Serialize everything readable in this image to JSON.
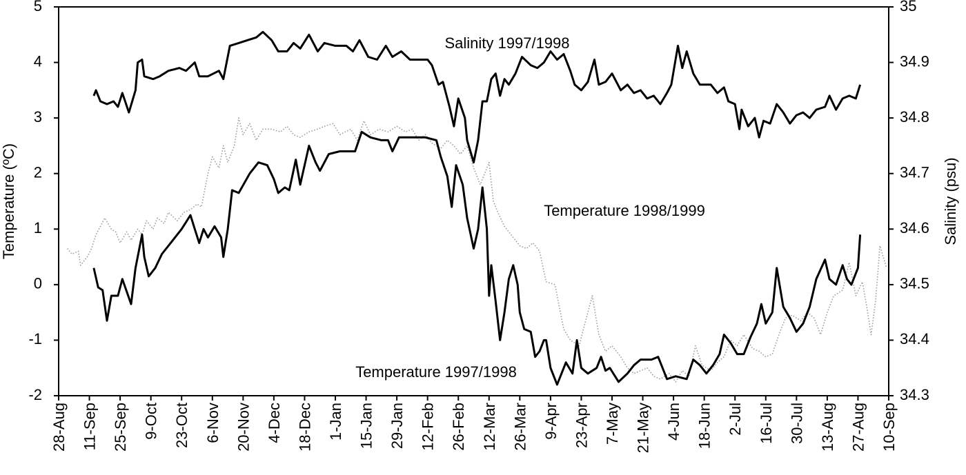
{
  "chart_data": {
    "type": "line",
    "ylabel": "Temperature (ºC)",
    "y2label": "Salinity (psu)",
    "xlim": [
      0,
      378
    ],
    "xticks": [
      {
        "value": 0,
        "label": "28-Aug"
      },
      {
        "value": 14,
        "label": "11-Sep"
      },
      {
        "value": 28,
        "label": "25-Sep"
      },
      {
        "value": 42,
        "label": "9-Oct"
      },
      {
        "value": 56,
        "label": "23-Oct"
      },
      {
        "value": 70,
        "label": "6-Nov"
      },
      {
        "value": 84,
        "label": "20-Nov"
      },
      {
        "value": 98,
        "label": "4-Dec"
      },
      {
        "value": 112,
        "label": "18-Dec"
      },
      {
        "value": 126,
        "label": "1-Jan"
      },
      {
        "value": 140,
        "label": "15-Jan"
      },
      {
        "value": 154,
        "label": "29-Jan"
      },
      {
        "value": 168,
        "label": "12-Feb"
      },
      {
        "value": 182,
        "label": "26-Feb"
      },
      {
        "value": 196,
        "label": "12-Mar"
      },
      {
        "value": 210,
        "label": "26-Mar"
      },
      {
        "value": 224,
        "label": "9-Apr"
      },
      {
        "value": 238,
        "label": "23-Apr"
      },
      {
        "value": 252,
        "label": "7-May"
      },
      {
        "value": 266,
        "label": "21-May"
      },
      {
        "value": 280,
        "label": "4-Jun"
      },
      {
        "value": 294,
        "label": "18-Jun"
      },
      {
        "value": 308,
        "label": "2-Jul"
      },
      {
        "value": 322,
        "label": "16-Jul"
      },
      {
        "value": 336,
        "label": "30-Jul"
      },
      {
        "value": 350,
        "label": "13-Aug"
      },
      {
        "value": 364,
        "label": "27-Aug"
      },
      {
        "value": 378,
        "label": "10-Sep"
      }
    ],
    "ylim": [
      -2,
      5
    ],
    "yticks": [
      -2,
      -1,
      0,
      1,
      2,
      3,
      4,
      5
    ],
    "y2lim": [
      34.3,
      35
    ],
    "y2ticks": [
      34.3,
      34.4,
      34.5,
      34.6,
      34.7,
      34.8,
      34.9,
      35
    ],
    "grid": false,
    "series": [
      {
        "name": "Temperature 1998/1999",
        "color": "#999999",
        "style": "dotted",
        "x": [
          4,
          6,
          9,
          10,
          13,
          15,
          17,
          19,
          21,
          24,
          26,
          28,
          31,
          33,
          36,
          38,
          40,
          43,
          45,
          48,
          50,
          54,
          57,
          60,
          63,
          65,
          68,
          70,
          73,
          75,
          77,
          80,
          82,
          84,
          87,
          90,
          93,
          97,
          101,
          104,
          107,
          110,
          114,
          118,
          121,
          125,
          128,
          133,
          136,
          139,
          142,
          146,
          150,
          154,
          158,
          161,
          164,
          167,
          170,
          174,
          177,
          180,
          183,
          186,
          189,
          192,
          196,
          198,
          200,
          203,
          207,
          210,
          213,
          216,
          219,
          222,
          226,
          228,
          230,
          233,
          237,
          240,
          243,
          246,
          249,
          252,
          256,
          259,
          262,
          265,
          268,
          271,
          274,
          278,
          281,
          284,
          287,
          290,
          293,
          297,
          300,
          303,
          306,
          309,
          312,
          316,
          319,
          322,
          325,
          328,
          331,
          334,
          338,
          341,
          344,
          347,
          350,
          353,
          357,
          360,
          363,
          366,
          368,
          370,
          372,
          374,
          377
        ],
        "values": [
          0.65,
          0.55,
          0.6,
          0.35,
          0.5,
          0.65,
          0.9,
          1.05,
          1.2,
          1.0,
          0.95,
          0.75,
          0.95,
          0.8,
          1.0,
          0.9,
          1.15,
          1.0,
          1.2,
          1.1,
          1.3,
          1.15,
          1.3,
          1.35,
          1.45,
          1.4,
          2.0,
          2.3,
          2.1,
          2.5,
          2.2,
          2.5,
          3.0,
          2.7,
          2.9,
          2.6,
          2.8,
          2.8,
          2.75,
          2.85,
          2.7,
          2.65,
          2.75,
          2.8,
          2.85,
          2.9,
          2.7,
          2.8,
          2.6,
          2.95,
          2.7,
          2.8,
          2.75,
          2.85,
          2.75,
          2.8,
          2.6,
          2.7,
          2.55,
          2.45,
          2.6,
          2.5,
          2.35,
          2.5,
          2.1,
          1.8,
          2.2,
          1.5,
          1.3,
          1.05,
          0.85,
          0.7,
          0.65,
          0.75,
          0.6,
          0.05,
          0.0,
          -0.4,
          -0.8,
          -1.0,
          -1.1,
          -0.65,
          -0.2,
          -0.9,
          -1.2,
          -1.1,
          -1.3,
          -1.5,
          -1.6,
          -1.55,
          -1.5,
          -1.65,
          -1.7,
          -1.6,
          -1.75,
          -1.55,
          -1.65,
          -1.1,
          -1.45,
          -1.55,
          -1.4,
          -1.3,
          -1.0,
          -1.1,
          -0.9,
          -1.15,
          -1.2,
          -1.3,
          -1.25,
          -0.9,
          -0.6,
          -0.55,
          -0.65,
          -0.5,
          -0.6,
          -0.9,
          -0.5,
          -0.2,
          -0.1,
          0.4,
          -0.2,
          0.05,
          -0.4,
          -0.9,
          -0.3,
          0.7,
          0.3
        ]
      },
      {
        "name": "Temperature 1997/1998",
        "color": "#000000",
        "style": "solid",
        "x": [
          16,
          18,
          20,
          22,
          24,
          27,
          29,
          33,
          35,
          38,
          39,
          41,
          44,
          47,
          52,
          56,
          60,
          62,
          64,
          66,
          68,
          71,
          74,
          75,
          77,
          79,
          82,
          87,
          91,
          95,
          98,
          100,
          103,
          105,
          108,
          110,
          114,
          117,
          119,
          123,
          128,
          133,
          135,
          138,
          142,
          147,
          150,
          152,
          155,
          161,
          167,
          172,
          174,
          177,
          179,
          181,
          184,
          186,
          189,
          191,
          193,
          195,
          196,
          197,
          199,
          201,
          203,
          205,
          207,
          209,
          210,
          212,
          215,
          217,
          219,
          221,
          222,
          224,
          227,
          229,
          231,
          234,
          236,
          238,
          241,
          245,
          247,
          249,
          251,
          255,
          259,
          262,
          265,
          270,
          273,
          277,
          281,
          286,
          289,
          292,
          295,
          298,
          301,
          303,
          306,
          309,
          312,
          315,
          318,
          320,
          322,
          325,
          327,
          330,
          333,
          336,
          339,
          342,
          345,
          349,
          351,
          354,
          357,
          359,
          361,
          364,
          365
        ],
        "values": [
          0.3,
          -0.05,
          -0.1,
          -0.65,
          -0.2,
          -0.2,
          0.1,
          -0.35,
          0.3,
          0.9,
          0.5,
          0.15,
          0.3,
          0.55,
          0.8,
          1.0,
          1.25,
          1.0,
          0.75,
          1.0,
          0.85,
          1.05,
          0.85,
          0.5,
          1.0,
          1.7,
          1.65,
          2.0,
          2.2,
          2.15,
          1.9,
          1.65,
          1.75,
          1.7,
          2.25,
          1.8,
          2.5,
          2.2,
          2.05,
          2.35,
          2.4,
          2.4,
          2.4,
          2.75,
          2.65,
          2.6,
          2.6,
          2.4,
          2.65,
          2.65,
          2.65,
          2.6,
          2.3,
          1.95,
          1.4,
          2.15,
          1.8,
          1.2,
          0.65,
          1.0,
          1.75,
          1.0,
          -0.2,
          0.35,
          -0.3,
          -1.0,
          -0.5,
          0.1,
          0.35,
          0.0,
          -0.5,
          -0.8,
          -0.85,
          -1.3,
          -1.2,
          -1.0,
          -1.0,
          -1.5,
          -1.8,
          -1.6,
          -1.4,
          -1.6,
          -1.0,
          -1.5,
          -1.6,
          -1.5,
          -1.3,
          -1.55,
          -1.5,
          -1.75,
          -1.6,
          -1.45,
          -1.35,
          -1.35,
          -1.3,
          -1.7,
          -1.65,
          -1.7,
          -1.35,
          -1.45,
          -1.6,
          -1.45,
          -1.25,
          -0.9,
          -1.05,
          -1.25,
          -1.25,
          -0.95,
          -0.7,
          -0.35,
          -0.7,
          -0.5,
          0.3,
          -0.4,
          -0.6,
          -0.85,
          -0.7,
          -0.4,
          0.1,
          0.45,
          0.1,
          0.0,
          0.35,
          0.1,
          0.0,
          0.3,
          0.9
        ]
      },
      {
        "name": "Salinity 1997/1998",
        "color": "#000000",
        "style": "solid",
        "axis": "y2",
        "x": [
          16,
          17,
          19,
          22,
          25,
          27,
          29,
          32,
          35,
          36,
          38,
          39,
          43,
          46,
          50,
          55,
          58,
          62,
          64,
          68,
          73,
          75,
          78,
          82,
          86,
          90,
          93,
          97,
          100,
          104,
          107,
          110,
          114,
          118,
          121,
          126,
          131,
          134,
          137,
          141,
          145,
          149,
          152,
          156,
          160,
          164,
          168,
          170,
          173,
          175,
          178,
          180,
          182,
          185,
          186,
          189,
          191,
          193,
          195,
          197,
          199,
          201,
          203,
          205,
          208,
          211,
          215,
          218,
          221,
          224,
          227,
          230,
          233,
          235,
          238,
          241,
          244,
          246,
          249,
          252,
          256,
          259,
          262,
          265,
          268,
          271,
          274,
          277,
          279,
          282,
          284,
          286,
          289,
          292,
          297,
          300,
          303,
          305,
          308,
          310,
          311,
          314,
          317,
          319,
          321,
          324,
          327,
          330,
          333,
          336,
          339,
          342,
          345,
          349,
          351,
          354,
          357,
          360,
          363,
          365
        ],
        "values": [
          34.84,
          34.85,
          34.83,
          34.825,
          34.83,
          34.82,
          34.845,
          34.81,
          34.85,
          34.9,
          34.905,
          34.875,
          34.87,
          34.875,
          34.885,
          34.89,
          34.885,
          34.9,
          34.875,
          34.875,
          34.885,
          34.87,
          34.93,
          34.935,
          34.94,
          34.945,
          34.955,
          34.94,
          34.92,
          34.92,
          34.935,
          34.925,
          34.95,
          34.92,
          34.935,
          34.93,
          34.93,
          34.92,
          34.94,
          34.91,
          34.905,
          34.93,
          34.91,
          34.92,
          34.905,
          34.905,
          34.905,
          34.895,
          34.86,
          34.865,
          34.82,
          34.785,
          34.835,
          34.8,
          34.76,
          34.72,
          34.76,
          34.83,
          34.83,
          34.87,
          34.88,
          34.84,
          34.87,
          34.86,
          34.88,
          34.91,
          34.895,
          34.89,
          34.9,
          34.92,
          34.905,
          34.915,
          34.885,
          34.86,
          34.85,
          34.865,
          34.905,
          34.86,
          34.865,
          34.88,
          34.85,
          34.86,
          34.845,
          34.85,
          34.835,
          34.84,
          34.825,
          34.845,
          34.86,
          34.93,
          34.89,
          34.92,
          34.88,
          34.86,
          34.86,
          34.845,
          34.855,
          34.83,
          34.825,
          34.78,
          34.815,
          34.785,
          34.8,
          34.765,
          34.795,
          34.79,
          34.825,
          34.81,
          34.79,
          34.805,
          34.81,
          34.8,
          34.815,
          34.82,
          34.84,
          34.815,
          34.835,
          34.84,
          34.835,
          34.86
        ]
      }
    ]
  }
}
